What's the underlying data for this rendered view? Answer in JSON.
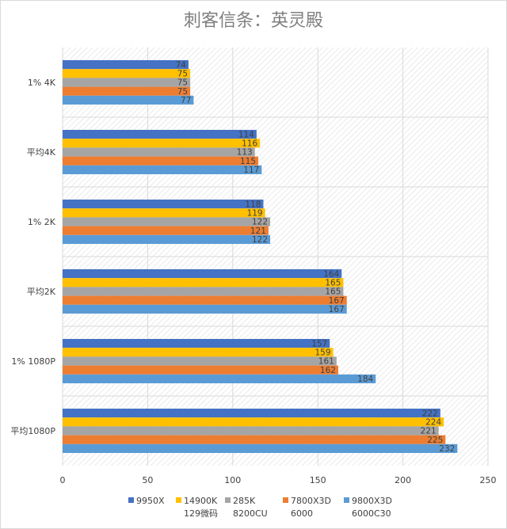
{
  "chart_data": {
    "type": "bar",
    "orientation": "horizontal",
    "title": "刺客信条：英灵殿",
    "categories": [
      "1% 4K",
      "平均4K",
      "1% 2K",
      "平均2K",
      "1% 1080P",
      "平均1080P"
    ],
    "series": [
      {
        "name_lines": [
          "9950X"
        ],
        "color": "#4472c4",
        "values": [
          74,
          114,
          118,
          164,
          157,
          222
        ]
      },
      {
        "name_lines": [
          "14900K",
          "129微码"
        ],
        "color": "#ffc000",
        "values": [
          75,
          116,
          119,
          165,
          159,
          224
        ]
      },
      {
        "name_lines": [
          "285K",
          "8200CU"
        ],
        "color": "#a5a5a5",
        "values": [
          75,
          113,
          122,
          165,
          161,
          221
        ]
      },
      {
        "name_lines": [
          "7800X3D",
          "6000"
        ],
        "color": "#ed7d31",
        "values": [
          75,
          115,
          121,
          167,
          162,
          225
        ]
      },
      {
        "name_lines": [
          "9800X3D",
          "6000C30"
        ],
        "color": "#5b9bd5",
        "values": [
          77,
          117,
          122,
          167,
          184,
          232
        ]
      }
    ],
    "xlim": [
      0,
      250
    ],
    "xticks": [
      0,
      50,
      100,
      150,
      200,
      250
    ],
    "grid": true,
    "legend_position": "bottom"
  }
}
